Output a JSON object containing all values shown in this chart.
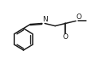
{
  "background": "#ffffff",
  "bond_color": "#1a1a1a",
  "bond_lw": 1.1,
  "atom_color": "#1a1a1a",
  "font_size": 6.5,
  "xlim": [
    0.0,
    1.0
  ],
  "ylim": [
    0.0,
    1.0
  ]
}
